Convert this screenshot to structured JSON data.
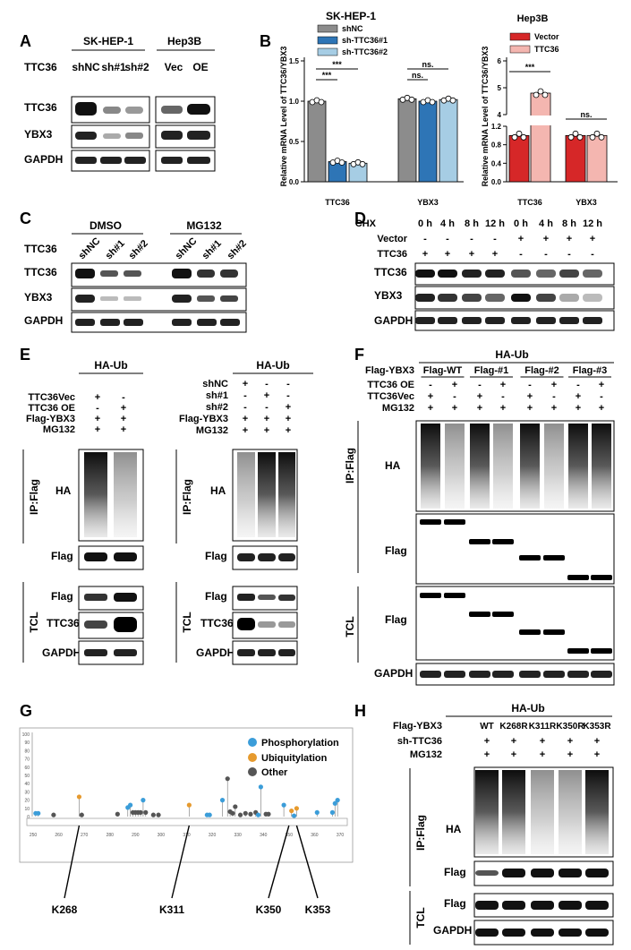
{
  "colors": {
    "grey_bar": "#8c8c8c",
    "blue_bar": "#2e75b6",
    "lightblue_bar": "#a6cde4",
    "red_bar": "#d62728",
    "pink_bar": "#f4b6b0"
  },
  "A": {
    "label": "A",
    "group1": "SK-HEP-1",
    "group2": "Hep3B",
    "row_label": "TTC36",
    "lanes": [
      "shNC",
      "sh#1",
      "sh#2",
      "Vec",
      "OE"
    ],
    "blots": [
      "TTC36",
      "YBX3",
      "GAPDH"
    ]
  },
  "B": {
    "label": "B",
    "chart_data": [
      {
        "type": "bar",
        "title": "SK-HEP-1",
        "ylabel": "Relative mRNA Level of TTC36/YBX3",
        "categories": [
          "TTC36",
          "YBX3"
        ],
        "series": [
          {
            "name": "shNC",
            "values": [
              1.0,
              1.03
            ]
          },
          {
            "name": "sh-TTC36#1",
            "values": [
              0.25,
              1.0
            ]
          },
          {
            "name": "sh-TTC36#2",
            "values": [
              0.23,
              1.02
            ]
          }
        ],
        "yticks": [
          "0.0",
          "0.5",
          "1.0",
          "1.5"
        ],
        "ylim": [
          0,
          1.5
        ],
        "annotations": [
          "***",
          "***",
          "ns.",
          "ns."
        ]
      },
      {
        "type": "bar",
        "title": "Hep3B",
        "ylabel": "Relative mRNA Level of TTC36/YBX3",
        "categories": [
          "TTC36",
          "YBX3"
        ],
        "series": [
          {
            "name": "Vector",
            "values": [
              1.0,
              1.0
            ]
          },
          {
            "name": "TTC36",
            "values": [
              4.8,
              1.0
            ]
          }
        ],
        "yticks": [
          "0.0",
          "0.4",
          "0.8",
          "1.2",
          "4",
          "5",
          "6"
        ],
        "ylim": [
          0,
          6
        ],
        "annotations": [
          "***",
          "ns."
        ]
      }
    ]
  },
  "C": {
    "label": "C",
    "group1": "DMSO",
    "group2": "MG132",
    "row_label": "TTC36",
    "lanes": [
      "shNC",
      "sh#1",
      "sh#2",
      "shNC",
      "sh#1",
      "sh#2"
    ],
    "blots": [
      "TTC36",
      "YBX3",
      "GAPDH"
    ]
  },
  "D": {
    "label": "D",
    "rows": [
      "CHX",
      "Vector",
      "TTC36"
    ],
    "times": [
      "0 h",
      "4 h",
      "8 h",
      "12 h",
      "0 h",
      "4 h",
      "8 h",
      "12 h"
    ],
    "vector_marks": [
      "-",
      "-",
      "-",
      "-",
      "+",
      "+",
      "+",
      "+"
    ],
    "ttc36_marks": [
      "+",
      "+",
      "+",
      "+",
      "-",
      "-",
      "-",
      "-"
    ],
    "blots": [
      "TTC36",
      "YBX3",
      "GAPDH"
    ]
  },
  "E": {
    "label": "E",
    "left": {
      "title": "HA-Ub",
      "conditions": [
        {
          "name": "TTC36Vec",
          "marks": [
            "+",
            "-"
          ]
        },
        {
          "name": "TTC36 OE",
          "marks": [
            "-",
            "+"
          ]
        },
        {
          "name": "Flag-YBX3",
          "marks": [
            "+",
            "+"
          ]
        },
        {
          "name": "MG132",
          "marks": [
            "+",
            "+"
          ]
        }
      ],
      "ip_label": "IP:Flag",
      "tcl_label": "TCL",
      "ip_blots": [
        "HA",
        "Flag"
      ],
      "tcl_blots": [
        "Flag",
        "TTC36",
        "GAPDH"
      ]
    },
    "right": {
      "title": "HA-Ub",
      "conditions": [
        {
          "name": "shNC",
          "marks": [
            "+",
            "-",
            "-"
          ]
        },
        {
          "name": "sh#1",
          "marks": [
            "-",
            "+",
            "-"
          ]
        },
        {
          "name": "sh#2",
          "marks": [
            "-",
            "-",
            "+"
          ]
        },
        {
          "name": "Flag-YBX3",
          "marks": [
            "+",
            "+",
            "+"
          ]
        },
        {
          "name": "MG132",
          "marks": [
            "+",
            "+",
            "+"
          ]
        }
      ],
      "ip_label": "IP:Flag",
      "tcl_label": "TCL",
      "ip_blots": [
        "HA",
        "Flag"
      ],
      "tcl_blots": [
        "Flag",
        "TTC36",
        "GAPDH"
      ]
    }
  },
  "F": {
    "label": "F",
    "title": "HA-Ub",
    "row_label": "Flag-YBX3",
    "groups": [
      "Flag-WT",
      "Flag-#1",
      "Flag-#2",
      "Flag-#3"
    ],
    "conditions": [
      {
        "name": "TTC36 OE",
        "marks": [
          "-",
          "+",
          "-",
          "+",
          "-",
          "+",
          "-",
          "+"
        ]
      },
      {
        "name": "TTC36Vec",
        "marks": [
          "+",
          "-",
          "+",
          "-",
          "+",
          "-",
          "+",
          "-"
        ]
      },
      {
        "name": "MG132",
        "marks": [
          "+",
          "+",
          "+",
          "+",
          "+",
          "+",
          "+",
          "+"
        ]
      }
    ],
    "ip_label": "IP:Flag",
    "tcl_label": "TCL",
    "blots": [
      "HA",
      "Flag",
      "Flag",
      "GAPDH"
    ]
  },
  "G": {
    "label": "G",
    "legend": [
      "Phosphorylation",
      "Ubiquitylation",
      "Other"
    ],
    "yticks": [
      "0",
      "10",
      "20",
      "30",
      "40",
      "50",
      "60",
      "70",
      "80",
      "90",
      "100"
    ],
    "xticks": [
      "250",
      "260",
      "270",
      "280",
      "290",
      "300",
      "310",
      "320",
      "330",
      "340",
      "350",
      "360",
      "370"
    ],
    "sites": [
      "K268",
      "K311",
      "K350",
      "K353"
    ]
  },
  "H": {
    "label": "H",
    "title": "HA-Ub",
    "row_label": "Flag-YBX3",
    "lanes": [
      "WT",
      "K268R",
      "K311R",
      "K350R",
      "K353R"
    ],
    "conditions": [
      {
        "name": "sh-TTC36",
        "marks": [
          "+",
          "+",
          "+",
          "+",
          "+"
        ]
      },
      {
        "name": "MG132",
        "marks": [
          "+",
          "+",
          "+",
          "+",
          "+"
        ]
      }
    ],
    "ip_label": "IP:Flag",
    "tcl_label": "TCL",
    "blots": [
      "HA",
      "Flag",
      "Flag",
      "GAPDH"
    ]
  }
}
